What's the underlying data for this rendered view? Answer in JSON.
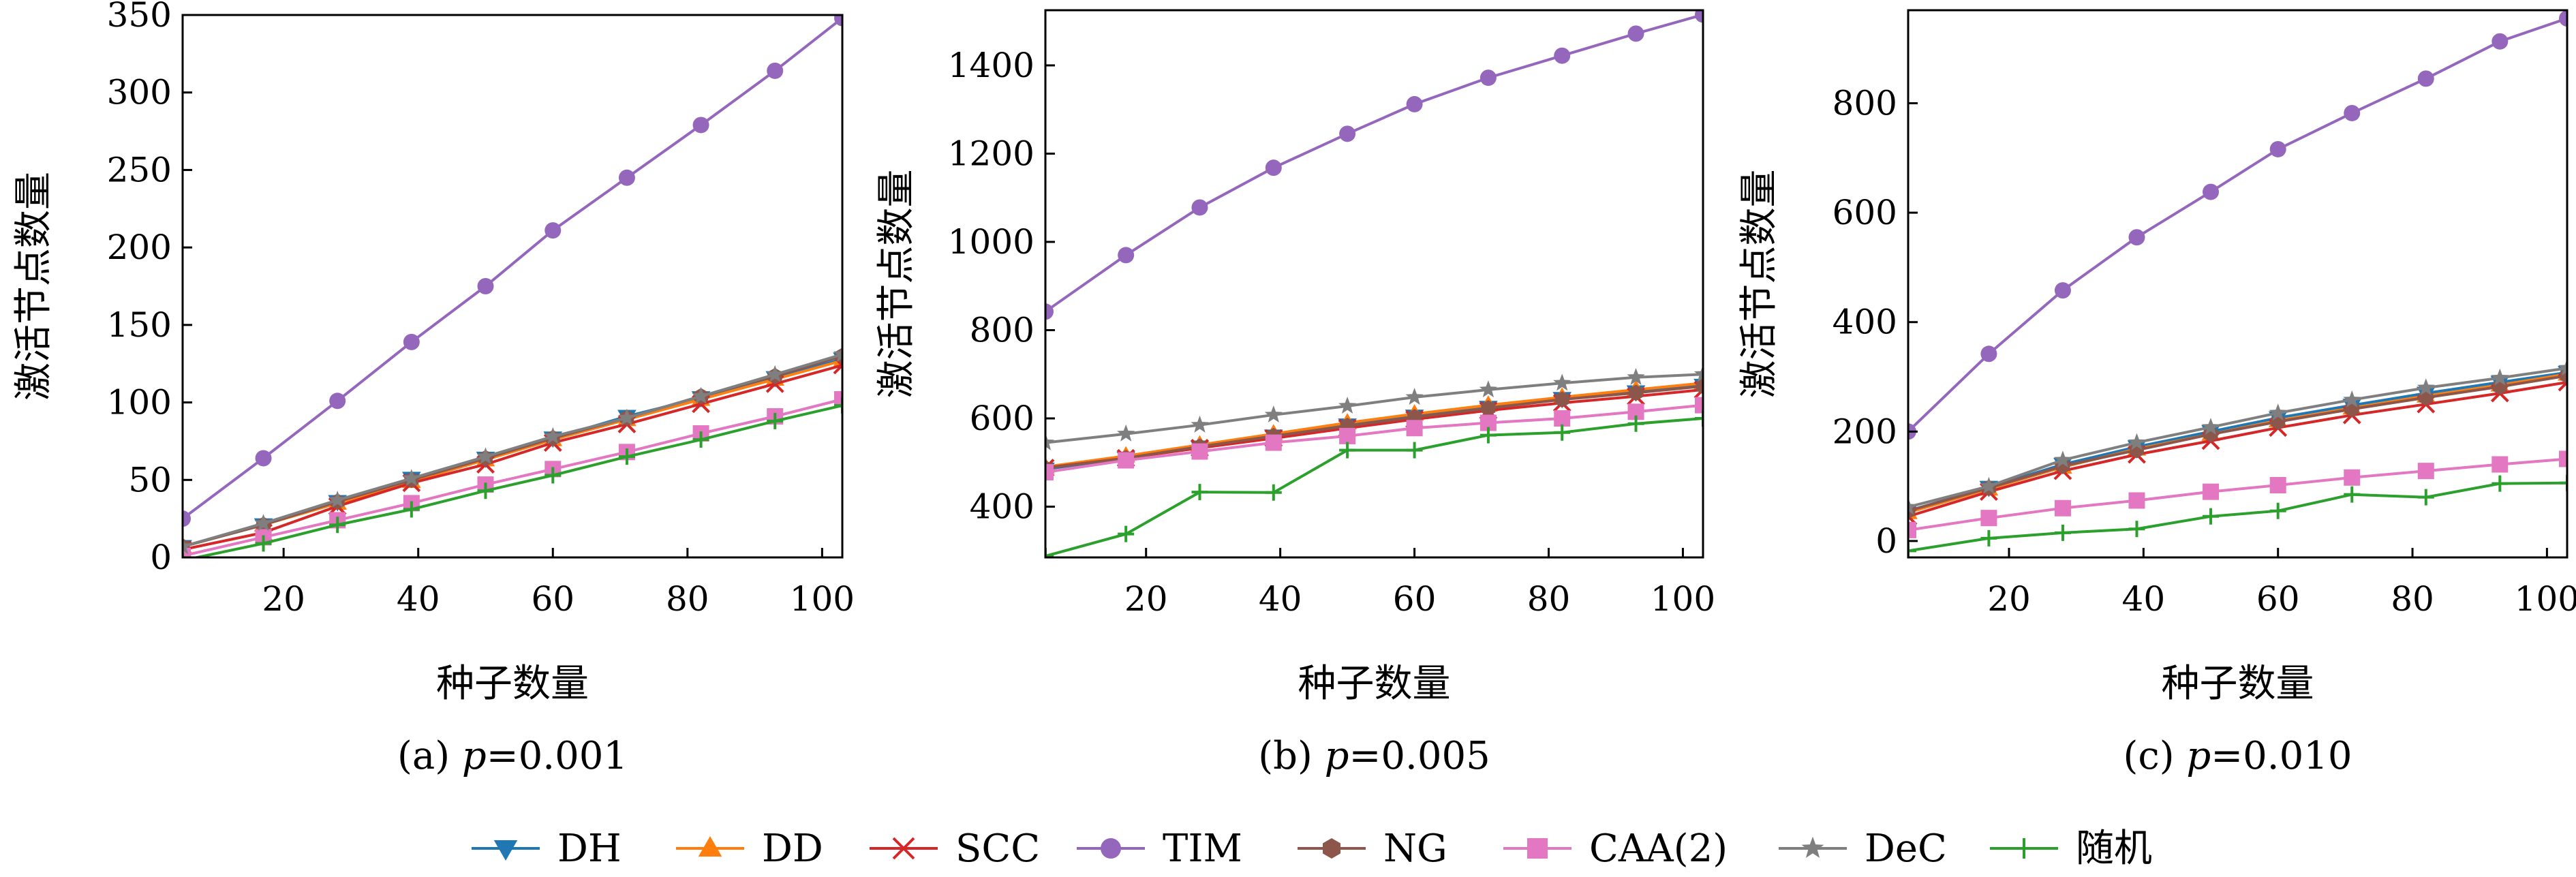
{
  "legend": {
    "items": [
      {
        "name": "DH",
        "color": "#1f77b4",
        "marker": "triangle-down"
      },
      {
        "name": "DD",
        "color": "#ff7f0e",
        "marker": "triangle-up"
      },
      {
        "name": "SCC",
        "color": "#d62728",
        "marker": "x"
      },
      {
        "name": "TIM",
        "color": "#9467bd",
        "marker": "circle"
      },
      {
        "name": "NG",
        "color": "#8c564b",
        "marker": "hexagon"
      },
      {
        "name": "CAA(2)",
        "color": "#e377c2",
        "marker": "square"
      },
      {
        "name": "DeC",
        "color": "#7f7f7f",
        "marker": "star"
      },
      {
        "name": "随机",
        "color": "#2ca02c",
        "marker": "plus"
      }
    ]
  },
  "chart_data": [
    {
      "type": "line",
      "caption": "(a) p=0.001",
      "caption_prefix": "(a) ",
      "caption_var": "p",
      "caption_value": "=0.001",
      "xlabel": "种子数量",
      "ylabel": "激活节点数量",
      "xlim": [
        5,
        103
      ],
      "ylim": [
        0,
        350
      ],
      "xticks": [
        20,
        40,
        60,
        80,
        100
      ],
      "yticks": [
        0,
        50,
        100,
        150,
        200,
        250,
        300,
        350
      ],
      "x": [
        5,
        17,
        28,
        39,
        50,
        60,
        71,
        82,
        93,
        103
      ],
      "series": [
        {
          "name": "DH",
          "values": [
            7,
            21,
            36,
            51,
            64,
            77,
            91,
            103,
            116,
            128
          ]
        },
        {
          "name": "DD",
          "values": [
            7,
            21,
            35,
            49,
            63,
            76,
            89,
            102,
            115,
            127
          ]
        },
        {
          "name": "SCC",
          "values": [
            5,
            16,
            33,
            48,
            60,
            74,
            86,
            99,
            112,
            124
          ]
        },
        {
          "name": "TIM",
          "values": [
            25,
            64,
            101,
            139,
            175,
            211,
            245,
            279,
            314,
            348
          ]
        },
        {
          "name": "NG",
          "values": [
            7,
            21,
            36,
            50,
            64,
            77,
            90,
            104,
            117,
            130
          ]
        },
        {
          "name": "CAA(2)",
          "values": [
            1,
            13,
            24,
            35,
            47,
            57,
            68,
            80,
            91,
            102
          ]
        },
        {
          "name": "DeC",
          "values": [
            7,
            22,
            37,
            51,
            65,
            78,
            90,
            104,
            118,
            131
          ]
        },
        {
          "name": "随机",
          "values": [
            -2,
            9,
            21,
            31,
            43,
            53,
            65,
            76,
            88,
            98
          ]
        }
      ]
    },
    {
      "type": "line",
      "caption": "(b) p=0.005",
      "caption_prefix": "(b) ",
      "caption_var": "p",
      "caption_value": "=0.005",
      "xlabel": "种子数量",
      "ylabel": "激活节点数量",
      "xlim": [
        5,
        103
      ],
      "ylim": [
        285,
        1525
      ],
      "xticks": [
        20,
        40,
        60,
        80,
        100
      ],
      "yticks": [
        400,
        600,
        800,
        1000,
        1200,
        1400
      ],
      "x": [
        5,
        17,
        28,
        39,
        50,
        60,
        71,
        82,
        93,
        103
      ],
      "series": [
        {
          "name": "DH",
          "values": [
            485,
            510,
            535,
            560,
            585,
            605,
            625,
            645,
            660,
            675
          ]
        },
        {
          "name": "DD",
          "values": [
            490,
            515,
            540,
            565,
            590,
            610,
            630,
            648,
            665,
            680
          ]
        },
        {
          "name": "SCC",
          "values": [
            488,
            510,
            533,
            555,
            578,
            598,
            618,
            635,
            650,
            665
          ]
        },
        {
          "name": "TIM",
          "values": [
            842,
            970,
            1078,
            1168,
            1245,
            1312,
            1372,
            1422,
            1472,
            1515
          ]
        },
        {
          "name": "NG",
          "values": [
            487,
            510,
            536,
            560,
            583,
            603,
            623,
            643,
            658,
            673
          ]
        },
        {
          "name": "CAA(2)",
          "values": [
            478,
            505,
            525,
            545,
            560,
            578,
            590,
            600,
            615,
            630
          ]
        },
        {
          "name": "DeC",
          "values": [
            545,
            565,
            585,
            608,
            628,
            648,
            665,
            680,
            693,
            700
          ]
        },
        {
          "name": "随机",
          "values": [
            288,
            338,
            433,
            432,
            528,
            528,
            562,
            568,
            588,
            600
          ]
        }
      ]
    },
    {
      "type": "line",
      "caption": "(c) p=0.010",
      "caption_prefix": "(c) ",
      "caption_var": "p",
      "caption_value": "=0.010",
      "xlabel": "种子数量",
      "ylabel": "激活节点数量",
      "xlim": [
        5,
        103
      ],
      "ylim": [
        -30,
        970
      ],
      "xticks": [
        20,
        40,
        60,
        80,
        100
      ],
      "yticks": [
        0,
        200,
        400,
        600,
        800
      ],
      "x": [
        5,
        17,
        28,
        39,
        50,
        60,
        71,
        82,
        93,
        103
      ],
      "series": [
        {
          "name": "DH",
          "values": [
            55,
            98,
            140,
            172,
            200,
            225,
            248,
            270,
            290,
            308
          ]
        },
        {
          "name": "DD",
          "values": [
            52,
            95,
            135,
            168,
            195,
            220,
            243,
            265,
            285,
            305
          ]
        },
        {
          "name": "SCC",
          "values": [
            45,
            90,
            128,
            158,
            183,
            207,
            230,
            250,
            270,
            290
          ]
        },
        {
          "name": "TIM",
          "values": [
            200,
            342,
            458,
            555,
            638,
            716,
            782,
            845,
            913,
            955
          ]
        },
        {
          "name": "NG",
          "values": [
            55,
            97,
            137,
            166,
            195,
            218,
            241,
            262,
            282,
            302
          ]
        },
        {
          "name": "CAA(2)",
          "values": [
            20,
            42,
            60,
            74,
            90,
            102,
            116,
            128,
            140,
            150
          ]
        },
        {
          "name": "DeC",
          "values": [
            62,
            100,
            148,
            180,
            208,
            234,
            258,
            280,
            298,
            316
          ]
        },
        {
          "name": "随机",
          "values": [
            -18,
            5,
            15,
            22,
            45,
            55,
            85,
            80,
            105,
            106
          ]
        }
      ]
    }
  ]
}
